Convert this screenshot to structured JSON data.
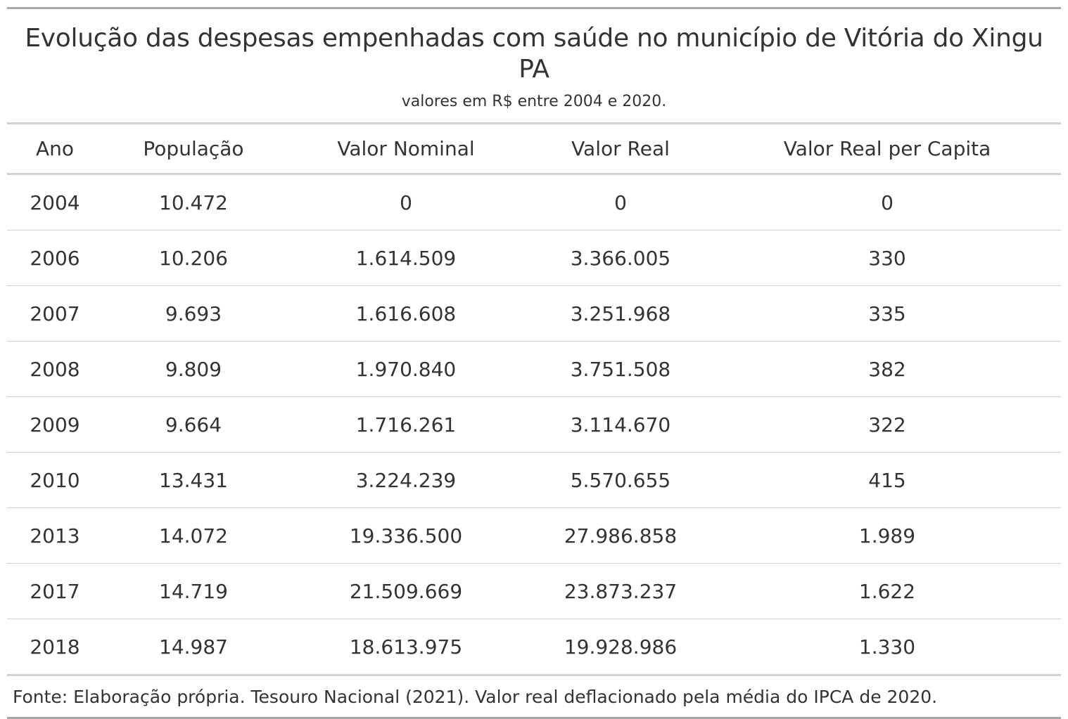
{
  "header": {
    "title": "Evolução das despesas empenhadas com saúde no município de Vitória do Xingu PA",
    "subtitle": "valores em R$ entre 2004 e 2020."
  },
  "table": {
    "columns": [
      "Ano",
      "População",
      "Valor Nominal",
      "Valor Real",
      "Valor Real per Capita"
    ],
    "rows": [
      [
        "2004",
        "10.472",
        "0",
        "0",
        "0"
      ],
      [
        "2006",
        "10.206",
        "1.614.509",
        "3.366.005",
        "330"
      ],
      [
        "2007",
        "9.693",
        "1.616.608",
        "3.251.968",
        "335"
      ],
      [
        "2008",
        "9.809",
        "1.970.840",
        "3.751.508",
        "382"
      ],
      [
        "2009",
        "9.664",
        "1.716.261",
        "3.114.670",
        "322"
      ],
      [
        "2010",
        "13.431",
        "3.224.239",
        "5.570.655",
        "415"
      ],
      [
        "2013",
        "14.072",
        "19.336.500",
        "27.986.858",
        "1.989"
      ],
      [
        "2017",
        "14.719",
        "21.509.669",
        "23.873.237",
        "1.622"
      ],
      [
        "2018",
        "14.987",
        "18.613.975",
        "19.928.986",
        "1.330"
      ]
    ]
  },
  "footer": {
    "source": "Fonte: Elaboração própria. Tesouro Nacional (2021). Valor real deflacionado pela média do IPCA de 2020."
  },
  "colors": {
    "text": "#333333",
    "outer_rule": "#a8a8a8",
    "inner_rule": "#d3d3d3"
  }
}
